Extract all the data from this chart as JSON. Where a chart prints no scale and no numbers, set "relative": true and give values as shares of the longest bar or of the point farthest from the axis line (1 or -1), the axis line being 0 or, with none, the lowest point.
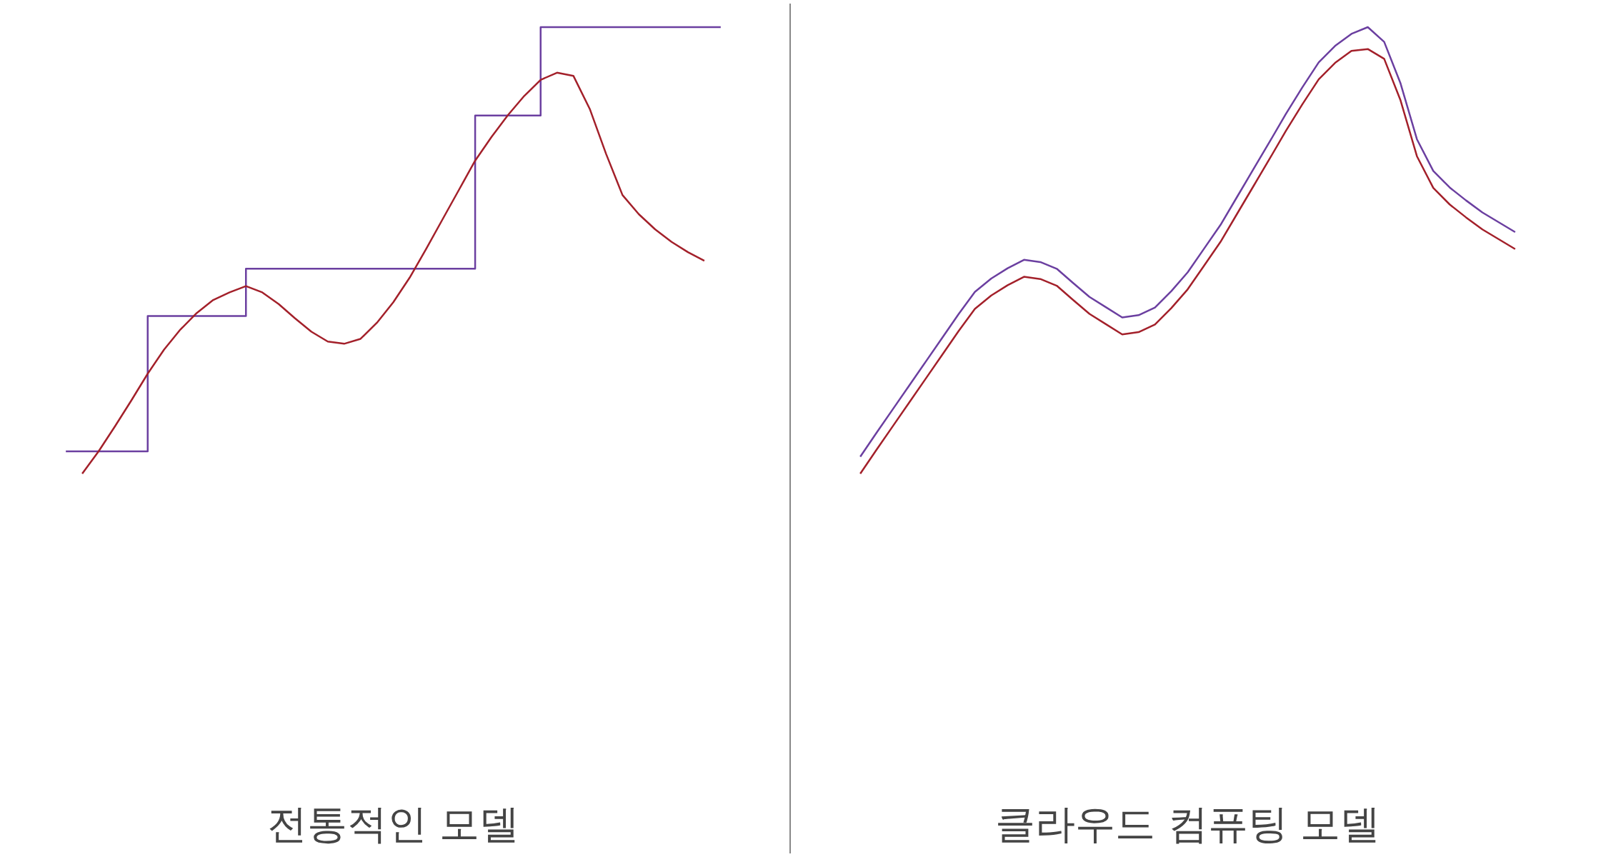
{
  "chart_data": [
    {
      "type": "line",
      "title": "전통적인 모델",
      "relative": true,
      "categories": [
        null,
        null,
        null,
        null,
        null,
        null,
        null,
        null,
        null,
        null,
        null,
        null,
        null,
        null,
        null,
        null,
        null,
        null,
        null,
        null,
        null,
        null,
        null,
        null,
        null,
        null,
        null,
        null,
        null,
        null,
        null,
        null,
        null,
        null,
        null,
        null,
        null,
        null,
        null,
        null,
        null
      ],
      "series": [
        {
          "type": "step",
          "color": "#6b3fa0",
          "values": [
            0.05,
            0.05,
            0.05,
            0.05,
            0.05,
            0.353,
            0.353,
            0.353,
            0.353,
            0.353,
            0.353,
            0.459,
            0.459,
            0.459,
            0.459,
            0.459,
            0.459,
            0.459,
            0.459,
            0.459,
            0.459,
            0.459,
            0.459,
            0.459,
            0.459,
            0.802,
            0.802,
            0.802,
            0.802,
            1,
            1,
            1,
            1,
            1,
            1,
            1,
            1,
            1,
            1,
            1,
            1
          ]
        },
        {
          "color": "#a3202a",
          "values": [
            null,
            0,
            0.05,
            0.106,
            0.164,
            0.224,
            0.278,
            0.323,
            0.36,
            0.389,
            0.406,
            0.42,
            0.406,
            0.38,
            0.348,
            0.318,
            0.296,
            0.291,
            0.302,
            0.338,
            0.384,
            0.439,
            0.503,
            0.569,
            0.635,
            0.701,
            0.754,
            0.803,
            0.846,
            0.882,
            0.898,
            0.891,
            0.817,
            0.716,
            0.624,
            0.581,
            0.547,
            0.519,
            0.496,
            0.477,
            null
          ]
        }
      ]
    },
    {
      "type": "line",
      "title": "클라우드 컴퓨팅 모델",
      "relative": true,
      "categories": [
        null,
        null,
        null,
        null,
        null,
        null,
        null,
        null,
        null,
        null,
        null,
        null,
        null,
        null,
        null,
        null,
        null,
        null,
        null,
        null,
        null,
        null,
        null,
        null,
        null,
        null,
        null,
        null,
        null,
        null,
        null,
        null,
        null,
        null,
        null,
        null,
        null,
        null,
        null,
        null,
        null
      ],
      "series": [
        {
          "color": "#6b3fa0",
          "values": [
            0.038,
            0.092,
            0.145,
            0.198,
            0.251,
            0.304,
            0.357,
            0.407,
            0.437,
            0.46,
            0.479,
            0.474,
            0.459,
            0.427,
            0.396,
            0.373,
            0.35,
            0.355,
            0.372,
            0.409,
            0.451,
            0.504,
            0.557,
            0.619,
            0.681,
            0.743,
            0.806,
            0.865,
            0.921,
            0.958,
            0.985,
            1,
            0.967,
            0.874,
            0.749,
            0.678,
            0.641,
            0.612,
            0.585,
            0.563,
            0.541
          ]
        },
        {
          "color": "#a3202a",
          "values": [
            0,
            0.054,
            0.107,
            0.16,
            0.213,
            0.266,
            0.319,
            0.369,
            0.399,
            0.422,
            0.441,
            0.436,
            0.421,
            0.389,
            0.358,
            0.335,
            0.312,
            0.317,
            0.334,
            0.371,
            0.413,
            0.466,
            0.519,
            0.581,
            0.643,
            0.705,
            0.768,
            0.827,
            0.883,
            0.92,
            0.947,
            0.951,
            0.929,
            0.836,
            0.711,
            0.64,
            0.603,
            0.574,
            0.547,
            0.525,
            0.503
          ]
        }
      ]
    }
  ]
}
